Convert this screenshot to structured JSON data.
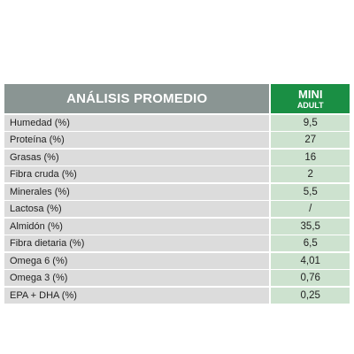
{
  "table": {
    "header_label": "ANÁLISIS PROMEDIO",
    "column_title": "MINI",
    "column_subtitle": "ADULT",
    "rows": [
      {
        "label": "Humedad (%)",
        "value": "9,5"
      },
      {
        "label": "Proteína (%)",
        "value": "27"
      },
      {
        "label": "Grasas (%)",
        "value": "16"
      },
      {
        "label": "Fibra cruda (%)",
        "value": "2"
      },
      {
        "label": "Minerales (%)",
        "value": "5,5"
      },
      {
        "label": "Lactosa (%)",
        "value": "/"
      },
      {
        "label": "Almidón (%)",
        "value": "35,5"
      },
      {
        "label": "Fibra dietaria (%)",
        "value": "6,5"
      },
      {
        "label": "Omega 6 (%)",
        "value": "4,01"
      },
      {
        "label": "Omega 3 (%)",
        "value": "0,76"
      },
      {
        "label": "EPA + DHA (%)",
        "value": "0,25"
      }
    ],
    "colors": {
      "header_gray": "#8a9593",
      "header_green": "#1a8f44",
      "row_gray": "#dcdcdc",
      "row_green": "#cde2cf"
    }
  }
}
